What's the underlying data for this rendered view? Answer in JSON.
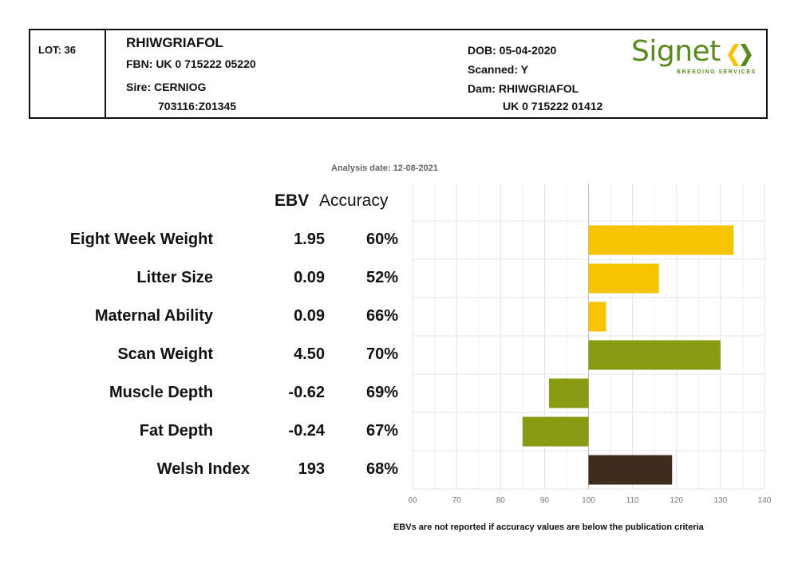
{
  "header": {
    "lot": "LOT: 36",
    "name": "RHIWGRIAFOL",
    "fbn": "FBN: UK 0 715222 05220",
    "sire": "Sire: CERNIOG",
    "sire_id": "703116:Z01345",
    "dob": "DOB: 05-04-2020",
    "scanned": "Scanned: Y",
    "dam": "Dam: RHIWGRIAFOL",
    "dam_id": "UK 0 715222 01412",
    "logo_text": "Signet",
    "logo_subtext": "BREEDING SERVICES",
    "logo_icon": "signet-chevrons-icon",
    "logo_color": "#5a8a1e"
  },
  "analysis_date": "Analysis date: 12-08-2021",
  "columns": {
    "ebv": "EBV",
    "accuracy": "Accuracy"
  },
  "footnote": "EBVs are not reported if accuracy values are below the publication criteria",
  "chart_data": {
    "type": "bar",
    "orientation": "horizontal",
    "baseline": 100,
    "xlim": [
      60,
      140
    ],
    "xticks": [
      "60",
      "70",
      "80",
      "90",
      "100",
      "110",
      "120",
      "130",
      "140"
    ],
    "grid": true,
    "rows": [
      {
        "label": "Eight Week Weight",
        "ebv": "1.95",
        "accuracy": "60%",
        "value": 133,
        "color": "#f5c400"
      },
      {
        "label": "Litter Size",
        "ebv": "0.09",
        "accuracy": "52%",
        "value": 116,
        "color": "#f5c400"
      },
      {
        "label": "Maternal Ability",
        "ebv": "0.09",
        "accuracy": "66%",
        "value": 104,
        "color": "#f5c400"
      },
      {
        "label": "Scan Weight",
        "ebv": "4.50",
        "accuracy": "70%",
        "value": 130,
        "color": "#8a9a13"
      },
      {
        "label": "Muscle Depth",
        "ebv": "-0.62",
        "accuracy": "69%",
        "value": 91,
        "color": "#8a9a13"
      },
      {
        "label": "Fat Depth",
        "ebv": "-0.24",
        "accuracy": "67%",
        "value": 85,
        "color": "#8a9a13"
      },
      {
        "label": "Welsh Index",
        "ebv": "193",
        "accuracy": "68%",
        "value": 119,
        "color": "#3e2c1c"
      }
    ]
  }
}
